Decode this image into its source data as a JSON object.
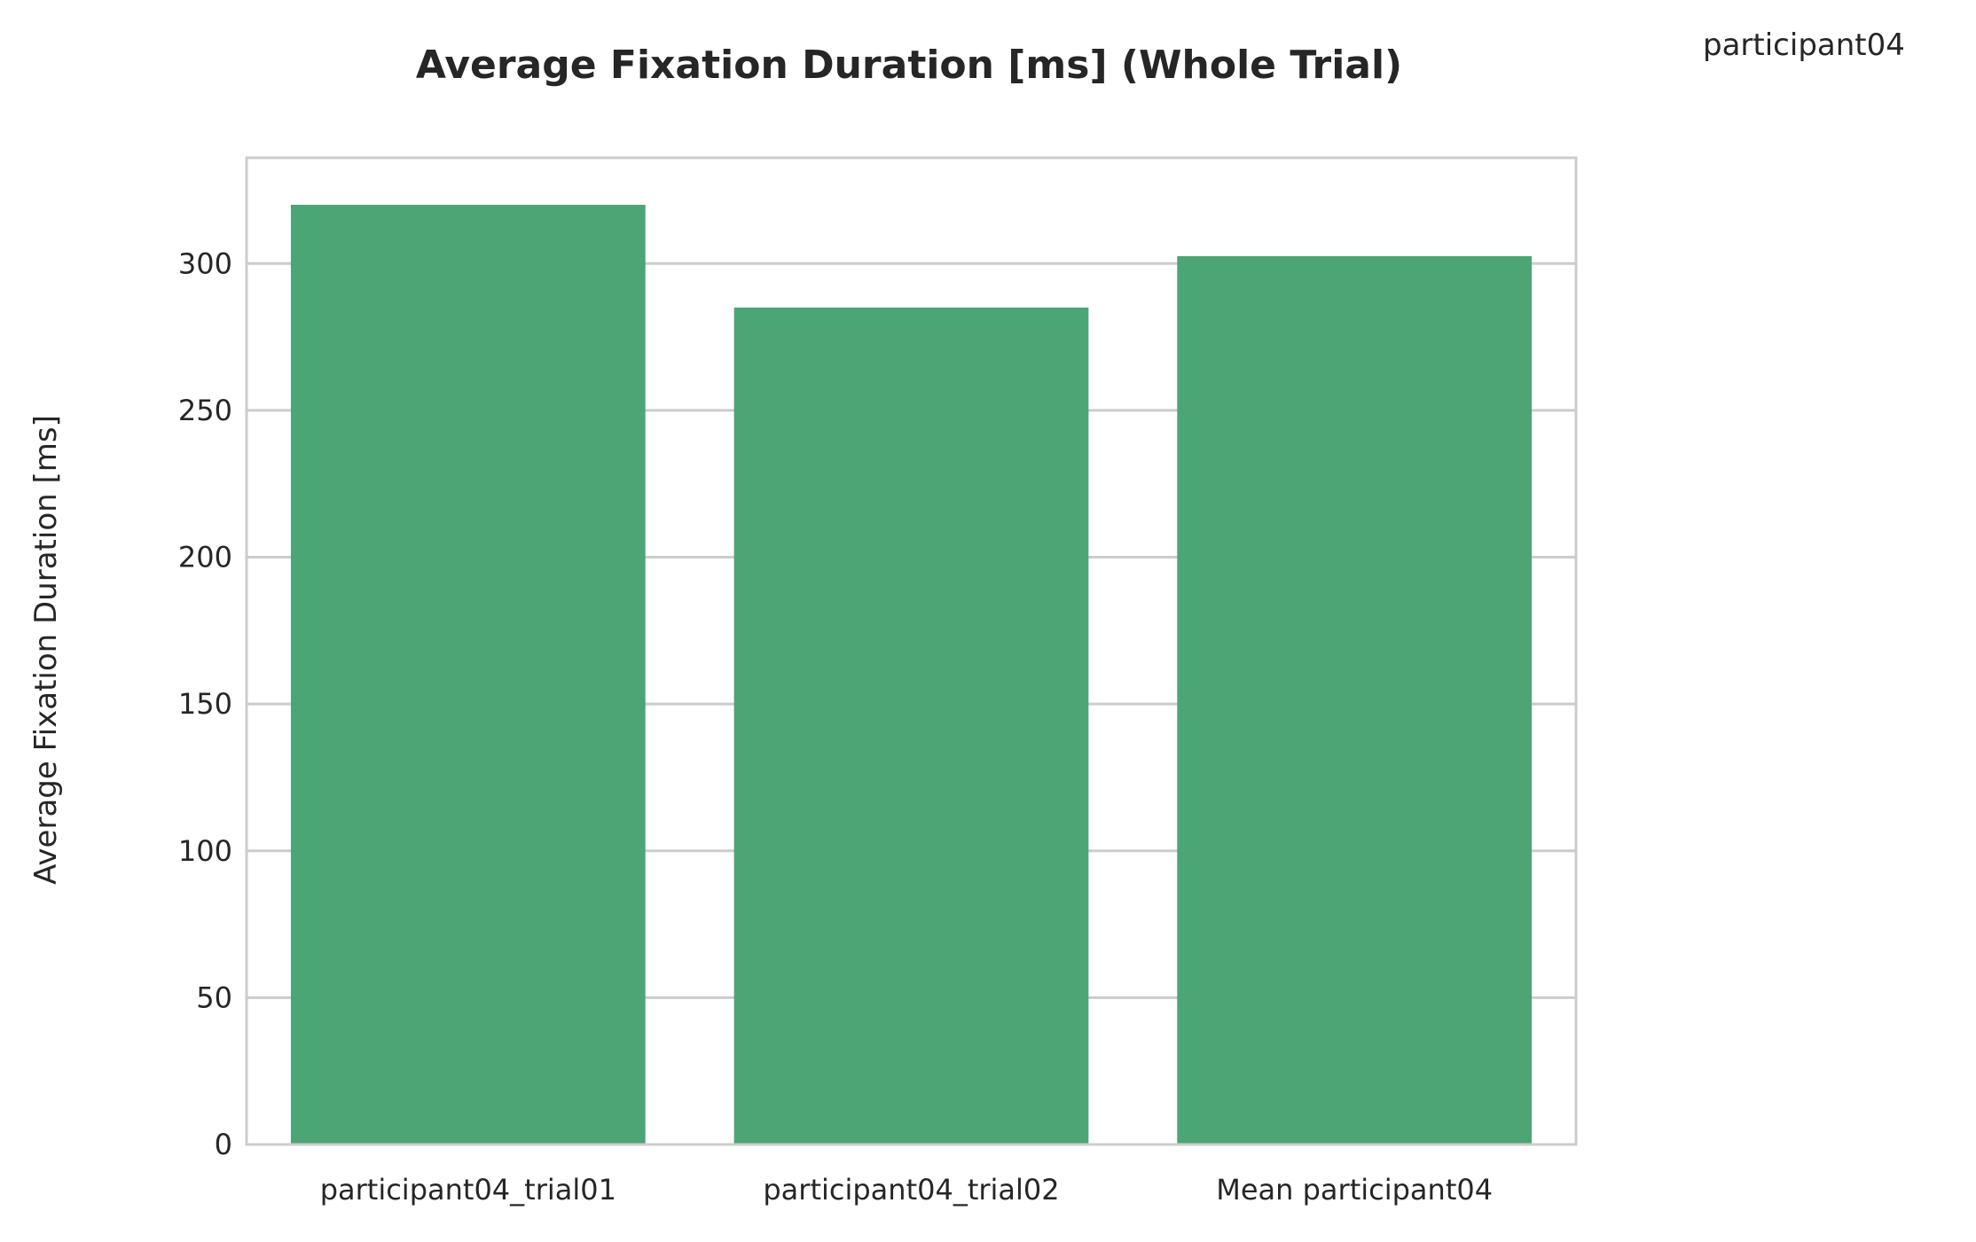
{
  "legend_text": "participant04",
  "chart_data": {
    "type": "bar",
    "title": "Average Fixation Duration [ms] (Whole Trial)",
    "xlabel": "",
    "ylabel": "Average Fixation Duration [ms]",
    "categories": [
      "participant04_trial01",
      "participant04_trial02",
      "Mean participant04"
    ],
    "values": [
      320,
      285,
      302.5
    ],
    "ylim": [
      0,
      336
    ],
    "yticks": [
      0,
      50,
      100,
      150,
      200,
      250,
      300
    ],
    "ytick_labels": [
      "0",
      "50",
      "100",
      "150",
      "200",
      "250",
      "300"
    ],
    "grid": true,
    "bar_color": "#4ca574",
    "grid_color": "#cccccc"
  }
}
